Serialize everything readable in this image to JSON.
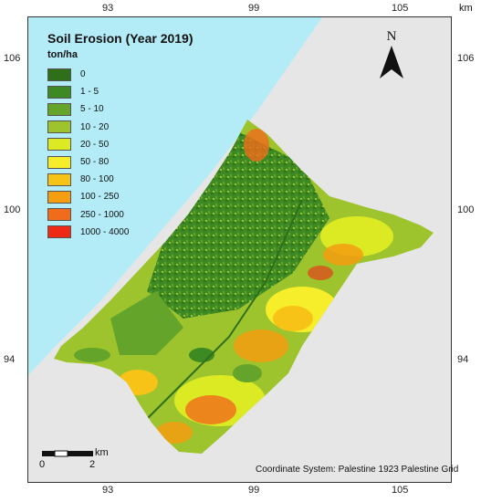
{
  "map": {
    "title": "Soil Erosion (Year 2019)",
    "unit": "ton/ha",
    "colors": {
      "sea": "#b3ecf7",
      "land_background": "#e6e6e6"
    },
    "legend": [
      {
        "label": "0",
        "color": "#2f6f1a"
      },
      {
        "label": "1 - 5",
        "color": "#3d8a24"
      },
      {
        "label": "5 - 10",
        "color": "#64a42b"
      },
      {
        "label": "10 - 20",
        "color": "#9ec42d"
      },
      {
        "label": "20 - 50",
        "color": "#dcea24"
      },
      {
        "label": "50 - 80",
        "color": "#f6ee2a"
      },
      {
        "label": "80 - 100",
        "color": "#f7c316"
      },
      {
        "label": "100 - 250",
        "color": "#f59e11"
      },
      {
        "label": "250 - 1000",
        "color": "#f06b1a"
      },
      {
        "label": "1000  - 4000",
        "color": "#ee2a16"
      }
    ],
    "top_ticks": [
      "93",
      "99",
      "105"
    ],
    "top_unit": "km",
    "bottom_ticks": [
      "93",
      "99",
      "105"
    ],
    "left_ticks": [
      "106",
      "100",
      "94"
    ],
    "right_ticks": [
      "106",
      "100",
      "94"
    ],
    "north_label": "N",
    "scale_bar": {
      "start": "0",
      "end": "2",
      "unit": "km"
    },
    "coordinate_system": "Coordinate System: Palestine 1923 Palestine Grid"
  }
}
